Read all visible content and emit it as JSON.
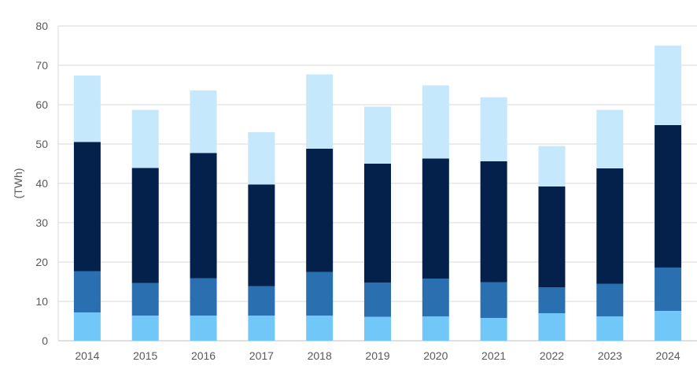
{
  "chart_data": {
    "type": "bar",
    "stacked": true,
    "categories": [
      "2014",
      "2015",
      "2016",
      "2017",
      "2018",
      "2019",
      "2020",
      "2021",
      "2022",
      "2023",
      "2024"
    ],
    "series": [
      {
        "color": "#71c7f7",
        "values": [
          7.2,
          6.4,
          6.4,
          6.4,
          6.4,
          6.1,
          6.2,
          5.8,
          7.0,
          6.2,
          7.6
        ]
      },
      {
        "color": "#2a70b0",
        "values": [
          10.5,
          8.3,
          9.5,
          7.5,
          11.1,
          8.7,
          9.6,
          9.1,
          6.6,
          8.3,
          11.0
        ]
      },
      {
        "color": "#03214a",
        "values": [
          32.8,
          29.2,
          31.8,
          25.8,
          31.3,
          30.2,
          30.5,
          30.7,
          25.6,
          29.3,
          36.2
        ]
      },
      {
        "color": "#c5e8fd",
        "values": [
          16.9,
          14.8,
          15.9,
          13.3,
          18.9,
          14.5,
          18.6,
          16.3,
          10.3,
          14.9,
          20.2
        ]
      }
    ],
    "ylabel": "(TWh)",
    "ylim": [
      0,
      80
    ],
    "yticks": [
      0,
      10,
      20,
      30,
      40,
      50,
      60,
      70,
      80
    ],
    "grid": true
  }
}
